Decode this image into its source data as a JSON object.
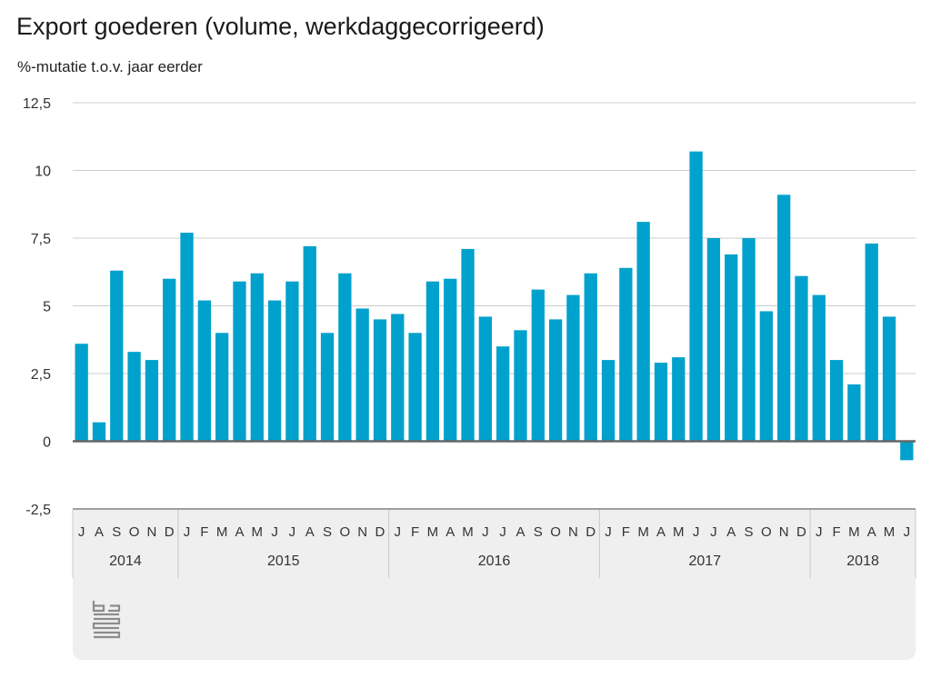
{
  "title": "Export goederen (volume, werkdaggecorrigeerd)",
  "subtitle": "%-mutatie t.o.v. jaar eerder",
  "colors": {
    "bar": "#00a1cd",
    "grid": "#cccccc",
    "axis": "#666666",
    "band": "#efefef",
    "separator": "#c8c8c8"
  },
  "logo_icon": "cbs-logo",
  "chart_data": {
    "type": "bar",
    "ylim": [
      -2.5,
      12.5
    ],
    "yticks": [
      12.5,
      10,
      7.5,
      5,
      2.5,
      0,
      -2.5
    ],
    "ytick_labels": [
      "12,5",
      "10",
      "7,5",
      "5",
      "2,5",
      "0",
      "-2,5"
    ],
    "grid": true,
    "categories": [
      "2014-07",
      "2014-08",
      "2014-09",
      "2014-10",
      "2014-11",
      "2014-12",
      "2015-01",
      "2015-02",
      "2015-03",
      "2015-04",
      "2015-05",
      "2015-06",
      "2015-07",
      "2015-08",
      "2015-09",
      "2015-10",
      "2015-11",
      "2015-12",
      "2016-01",
      "2016-02",
      "2016-03",
      "2016-04",
      "2016-05",
      "2016-06",
      "2016-07",
      "2016-08",
      "2016-09",
      "2016-10",
      "2016-11",
      "2016-12",
      "2017-01",
      "2017-02",
      "2017-03",
      "2017-04",
      "2017-05",
      "2017-06",
      "2017-07",
      "2017-08",
      "2017-09",
      "2017-10",
      "2017-11",
      "2017-12",
      "2018-01",
      "2018-02",
      "2018-03",
      "2018-04",
      "2018-05",
      "2018-06"
    ],
    "month_labels": [
      "J",
      "A",
      "S",
      "O",
      "N",
      "D",
      "J",
      "F",
      "M",
      "A",
      "M",
      "J",
      "J",
      "A",
      "S",
      "O",
      "N",
      "D",
      "J",
      "F",
      "M",
      "A",
      "M",
      "J",
      "J",
      "A",
      "S",
      "O",
      "N",
      "D",
      "J",
      "F",
      "M",
      "A",
      "M",
      "J",
      "J",
      "A",
      "S",
      "O",
      "N",
      "D",
      "J",
      "F",
      "M",
      "A",
      "M",
      "J"
    ],
    "years": [
      {
        "label": "2014",
        "count": 6
      },
      {
        "label": "2015",
        "count": 12
      },
      {
        "label": "2016",
        "count": 12
      },
      {
        "label": "2017",
        "count": 12
      },
      {
        "label": "2018",
        "count": 6
      }
    ],
    "values": [
      3.6,
      0.7,
      6.3,
      3.3,
      3.0,
      6.0,
      7.7,
      5.2,
      4.0,
      5.9,
      6.2,
      5.2,
      5.9,
      7.2,
      4.0,
      6.2,
      4.9,
      4.5,
      4.7,
      4.0,
      5.9,
      6.0,
      7.1,
      4.6,
      3.5,
      4.1,
      5.6,
      4.5,
      5.4,
      6.2,
      3.0,
      6.4,
      8.1,
      2.9,
      3.1,
      10.7,
      7.5,
      6.9,
      7.5,
      4.8,
      9.1,
      6.1,
      5.4,
      3.0,
      2.1,
      7.3,
      4.6,
      -0.7
    ]
  }
}
